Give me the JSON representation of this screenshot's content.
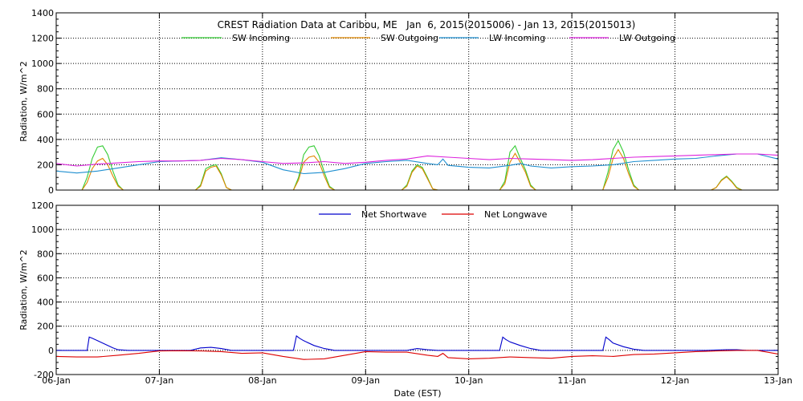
{
  "title": "CREST Radiation Data at Caribou, ME   Jan  6, 2015(2015006) - Jan 13, 2015(2015013)",
  "xlabel": "Date (EST)",
  "x_ticks": [
    "06-Jan",
    "07-Jan",
    "08-Jan",
    "09-Jan",
    "10-Jan",
    "11-Jan",
    "12-Jan",
    "13-Jan"
  ],
  "chart_data": [
    {
      "type": "line",
      "ylabel": "Radiation, W/m^2",
      "ylim": [
        0,
        1400
      ],
      "yticks": [
        0,
        200,
        400,
        600,
        800,
        1000,
        1200,
        1400
      ],
      "xlim": [
        0,
        7
      ],
      "grid": true,
      "legend": "top",
      "series": [
        {
          "name": "SW Incoming",
          "color": "#33cc33",
          "x": [
            0,
            0.25,
            0.3,
            0.35,
            0.4,
            0.45,
            0.5,
            0.55,
            0.6,
            0.65,
            0.7,
            1.0,
            1.35,
            1.4,
            1.45,
            1.5,
            1.55,
            1.6,
            1.65,
            1.7,
            2.0,
            2.3,
            2.35,
            2.4,
            2.45,
            2.5,
            2.55,
            2.6,
            2.65,
            2.7,
            3.0,
            3.35,
            3.4,
            3.45,
            3.5,
            3.55,
            3.6,
            3.65,
            3.7,
            4.0,
            4.3,
            4.35,
            4.4,
            4.45,
            4.5,
            4.55,
            4.6,
            4.65,
            4.7,
            5.0,
            5.3,
            5.35,
            5.4,
            5.45,
            5.5,
            5.55,
            5.6,
            5.65,
            5.7,
            6.0,
            6.35,
            6.4,
            6.45,
            6.5,
            6.55,
            6.6,
            6.65,
            6.7,
            7.0
          ],
          "y": [
            0,
            0,
            100,
            250,
            340,
            350,
            280,
            150,
            40,
            0,
            0,
            0,
            0,
            40,
            170,
            190,
            200,
            130,
            20,
            0,
            0,
            0,
            100,
            280,
            340,
            350,
            270,
            140,
            30,
            0,
            0,
            0,
            40,
            150,
            200,
            180,
            100,
            10,
            0,
            0,
            0,
            70,
            300,
            350,
            250,
            160,
            40,
            0,
            0,
            0,
            0,
            140,
            320,
            390,
            300,
            160,
            40,
            0,
            0,
            0,
            0,
            20,
            80,
            110,
            70,
            20,
            0,
            0,
            0
          ]
        },
        {
          "name": "SW Outgoing",
          "color": "#e08800",
          "x": [
            0,
            0.25,
            0.3,
            0.35,
            0.4,
            0.45,
            0.5,
            0.55,
            0.6,
            0.65,
            0.7,
            1.0,
            1.35,
            1.4,
            1.45,
            1.5,
            1.55,
            1.6,
            1.65,
            1.7,
            2.0,
            2.3,
            2.35,
            2.4,
            2.45,
            2.5,
            2.55,
            2.6,
            2.65,
            2.7,
            3.0,
            3.35,
            3.4,
            3.45,
            3.5,
            3.55,
            3.6,
            3.65,
            3.7,
            4.0,
            4.3,
            4.35,
            4.4,
            4.45,
            4.5,
            4.55,
            4.6,
            4.65,
            4.7,
            5.0,
            5.3,
            5.35,
            5.4,
            5.45,
            5.5,
            5.55,
            5.6,
            5.65,
            5.7,
            6.0,
            6.35,
            6.4,
            6.45,
            6.5,
            6.55,
            6.6,
            6.65,
            6.7,
            7.0
          ],
          "y": [
            0,
            0,
            60,
            170,
            230,
            250,
            200,
            110,
            30,
            0,
            0,
            0,
            0,
            30,
            150,
            180,
            190,
            120,
            20,
            0,
            0,
            0,
            80,
            220,
            260,
            270,
            220,
            110,
            20,
            0,
            0,
            0,
            30,
            140,
            190,
            170,
            90,
            10,
            0,
            0,
            0,
            50,
            220,
            290,
            220,
            140,
            30,
            0,
            0,
            0,
            0,
            100,
            250,
            320,
            250,
            130,
            30,
            0,
            0,
            0,
            0,
            20,
            75,
            105,
            65,
            15,
            0,
            0,
            0
          ]
        },
        {
          "name": "LW Incoming",
          "color": "#1f8fd0",
          "x": [
            0,
            0.2,
            0.4,
            0.6,
            0.8,
            1.0,
            1.2,
            1.4,
            1.6,
            1.8,
            2.0,
            2.2,
            2.4,
            2.6,
            2.8,
            3.0,
            3.2,
            3.4,
            3.6,
            3.7,
            3.75,
            3.8,
            4.0,
            4.2,
            4.4,
            4.5,
            4.6,
            4.8,
            5.0,
            5.2,
            5.4,
            5.6,
            5.8,
            6.0,
            6.2,
            6.4,
            6.6,
            6.8,
            7.0
          ],
          "y": [
            150,
            135,
            150,
            175,
            200,
            225,
            230,
            235,
            255,
            240,
            220,
            160,
            130,
            140,
            170,
            210,
            225,
            235,
            210,
            200,
            245,
            195,
            180,
            175,
            195,
            210,
            190,
            175,
            185,
            190,
            200,
            225,
            235,
            245,
            250,
            270,
            285,
            285,
            245
          ]
        },
        {
          "name": "LW Outgoing",
          "color": "#dd22dd",
          "x": [
            0,
            0.2,
            0.4,
            0.6,
            0.8,
            1.0,
            1.2,
            1.4,
            1.6,
            1.8,
            2.0,
            2.2,
            2.4,
            2.6,
            2.8,
            3.0,
            3.2,
            3.4,
            3.6,
            3.8,
            4.0,
            4.2,
            4.4,
            4.6,
            4.8,
            5.0,
            5.2,
            5.4,
            5.6,
            5.8,
            6.0,
            6.2,
            6.4,
            6.6,
            6.8,
            7.0
          ],
          "y": [
            210,
            190,
            205,
            215,
            225,
            230,
            230,
            235,
            250,
            240,
            225,
            210,
            215,
            225,
            210,
            220,
            235,
            245,
            270,
            260,
            250,
            240,
            250,
            245,
            240,
            235,
            240,
            250,
            260,
            265,
            270,
            275,
            280,
            285,
            285,
            275
          ]
        }
      ]
    },
    {
      "type": "line",
      "ylabel": "Radiation, W/m^2",
      "ylim": [
        -200,
        1200
      ],
      "yticks": [
        -200,
        0,
        200,
        400,
        600,
        800,
        1000,
        1200
      ],
      "xlim": [
        0,
        7
      ],
      "grid": true,
      "legend": "top",
      "series": [
        {
          "name": "Net Shortwave",
          "color": "#0000cc",
          "x": [
            0,
            0.3,
            0.32,
            0.35,
            0.4,
            0.45,
            0.5,
            0.55,
            0.6,
            0.7,
            1.0,
            1.3,
            1.4,
            1.5,
            1.6,
            1.7,
            2.0,
            2.3,
            2.33,
            2.36,
            2.4,
            2.5,
            2.6,
            2.7,
            3.0,
            3.4,
            3.5,
            3.6,
            3.7,
            4.0,
            4.3,
            4.33,
            4.36,
            4.4,
            4.5,
            4.6,
            4.7,
            5.0,
            5.3,
            5.33,
            5.36,
            5.4,
            5.5,
            5.6,
            5.7,
            6.0,
            6.3,
            6.5,
            6.6,
            6.7,
            7.0
          ],
          "y": [
            0,
            0,
            110,
            100,
            80,
            60,
            40,
            20,
            5,
            0,
            0,
            0,
            20,
            25,
            15,
            0,
            0,
            0,
            120,
            100,
            80,
            40,
            15,
            0,
            0,
            0,
            15,
            5,
            0,
            0,
            0,
            110,
            90,
            70,
            40,
            15,
            0,
            0,
            0,
            110,
            90,
            60,
            30,
            10,
            0,
            0,
            0,
            5,
            5,
            0,
            0
          ]
        },
        {
          "name": "Net Longwave",
          "color": "#dd0000",
          "x": [
            0,
            0.2,
            0.4,
            0.6,
            0.8,
            1.0,
            1.2,
            1.4,
            1.6,
            1.8,
            2.0,
            2.2,
            2.4,
            2.6,
            2.8,
            3.0,
            3.2,
            3.4,
            3.6,
            3.7,
            3.75,
            3.8,
            4.0,
            4.2,
            4.4,
            4.6,
            4.8,
            5.0,
            5.2,
            5.4,
            5.6,
            5.8,
            6.0,
            6.2,
            6.4,
            6.6,
            6.8,
            7.0
          ],
          "y": [
            -50,
            -55,
            -55,
            -40,
            -25,
            -5,
            -3,
            -5,
            -10,
            -25,
            -20,
            -50,
            -75,
            -70,
            -40,
            -10,
            -15,
            -15,
            -40,
            -50,
            -25,
            -60,
            -70,
            -65,
            -55,
            -60,
            -65,
            -50,
            -45,
            -50,
            -35,
            -30,
            -20,
            -10,
            -5,
            0,
            0,
            -30
          ]
        }
      ]
    }
  ]
}
